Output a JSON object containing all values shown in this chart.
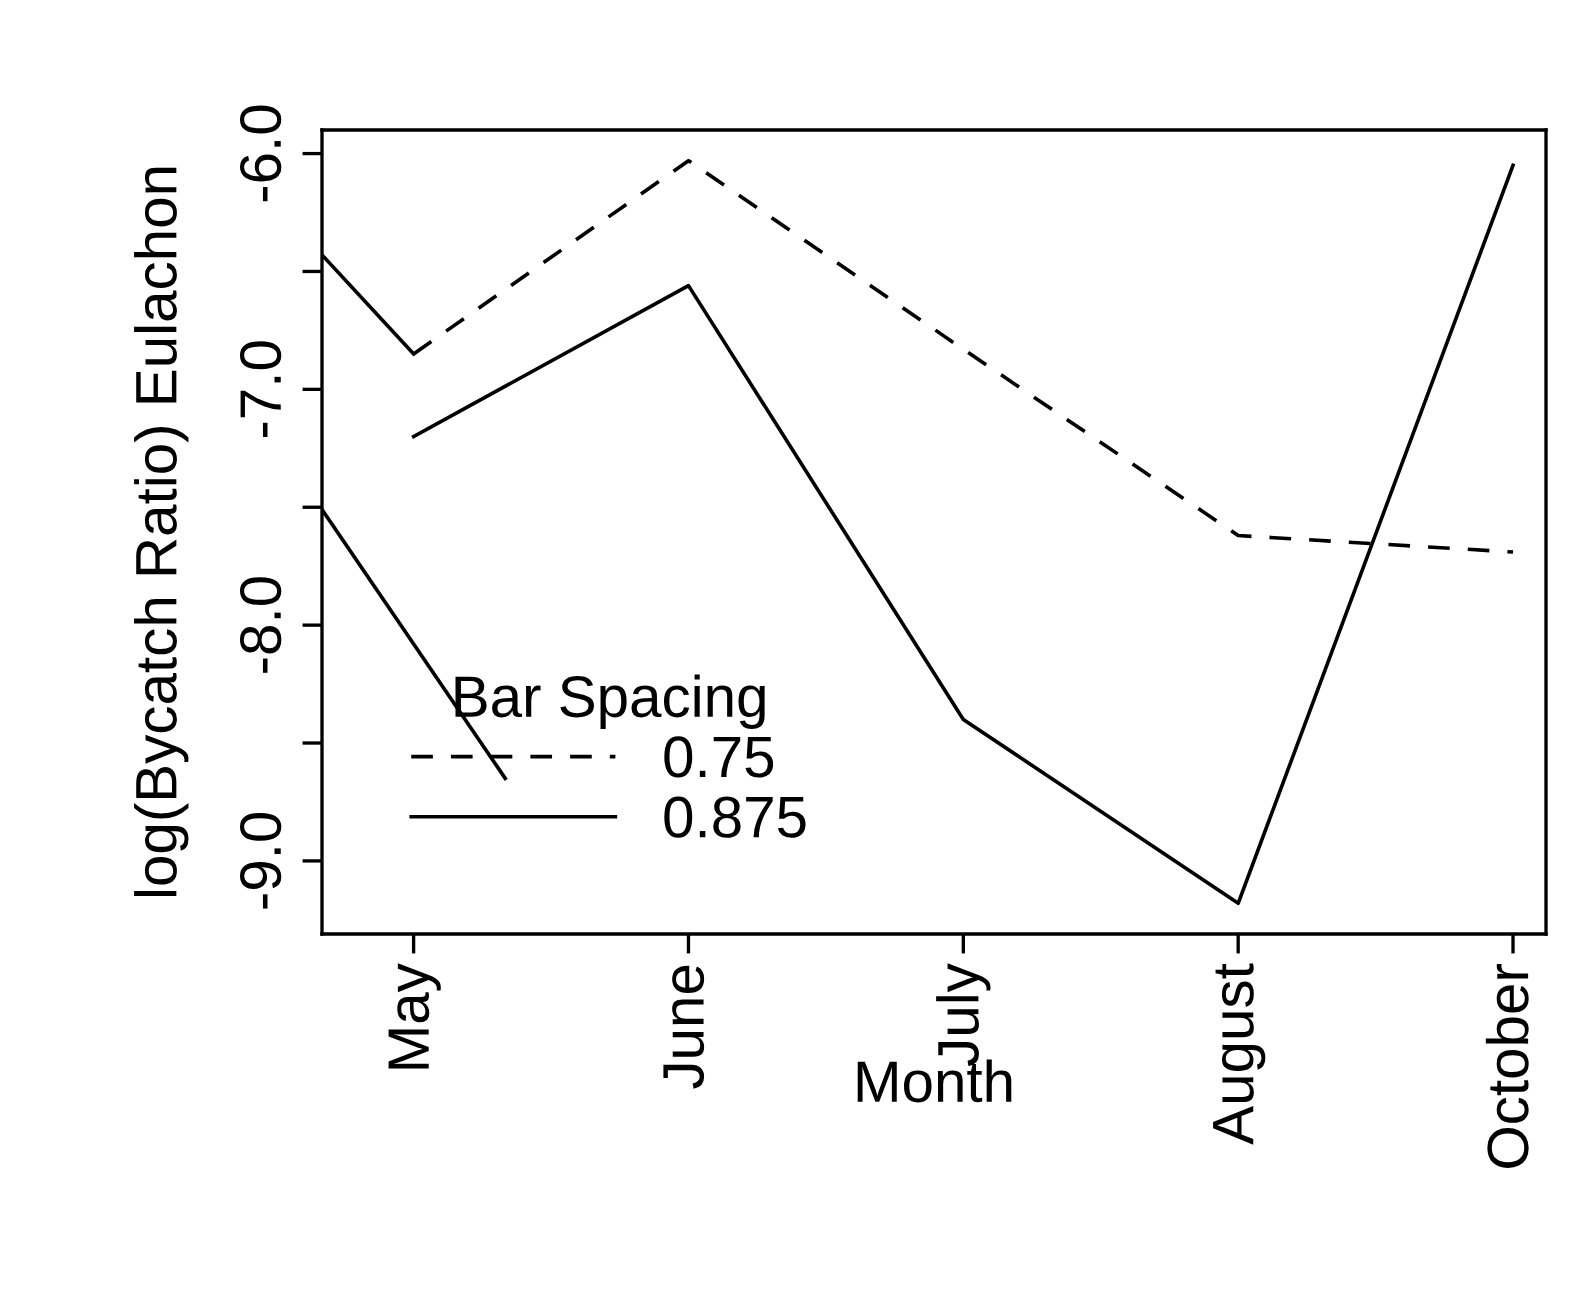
{
  "chart_data": {
    "type": "line",
    "xlabel": "Month",
    "ylabel": "log(Bycatch Ratio) Eulachon",
    "legend_title": "Bar Spacing",
    "legend": "bottom left",
    "marker": "none",
    "categories": [
      null,
      "May",
      null,
      null,
      "June",
      null,
      null,
      "July",
      null,
      null,
      "August",
      null,
      null,
      "October"
    ],
    "ylim": [
      -9.31,
      -5.9
    ],
    "yticks": [
      {
        "value": -9.0,
        "label": "-9.0"
      },
      {
        "value": -8.5,
        "label": null
      },
      {
        "value": -8.0,
        "label": "-8.0"
      },
      {
        "value": -7.5,
        "label": null
      },
      {
        "value": -7.0,
        "label": "-7.0"
      },
      {
        "value": -6.5,
        "label": null
      },
      {
        "value": -6.0,
        "label": "-6.0"
      }
    ],
    "series": [
      {
        "name": "0.75",
        "color": "#000000",
        "line_style": "dashed",
        "values": [
          null,
          -6.85,
          null,
          null,
          -6.03,
          null,
          null,
          -6.83,
          null,
          null,
          -7.62,
          null,
          null,
          -7.69
        ]
      },
      {
        "name": "0.875",
        "color": "#000000",
        "line_style": "solid",
        "values": [
          null,
          -7.2,
          null,
          null,
          -6.56,
          null,
          null,
          -8.4,
          null,
          null,
          -9.18,
          null,
          null,
          -6.05
        ]
      },
      {
        "color": "#000000",
        "line_style": "solid",
        "values": [
          -6.43,
          -6.85,
          null,
          null,
          null,
          null,
          null,
          null,
          null,
          null,
          null,
          null,
          null,
          null
        ]
      },
      {
        "color": "#000000",
        "line_style": "solid",
        "values": [
          -7.51,
          null,
          -8.65,
          null,
          null,
          null,
          null,
          null,
          null,
          null,
          null,
          null,
          null,
          null
        ]
      }
    ]
  }
}
